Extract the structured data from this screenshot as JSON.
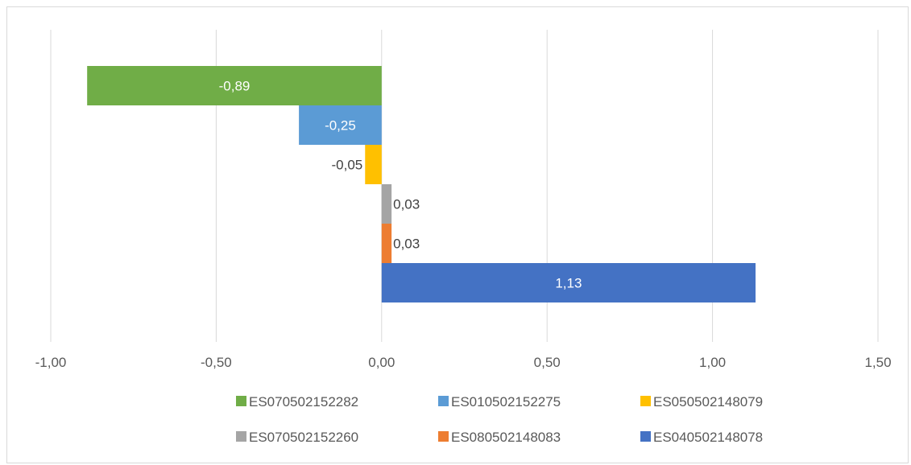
{
  "chart_data": {
    "type": "bar",
    "orientation": "horizontal",
    "title": "",
    "xlabel": "",
    "ylabel": "",
    "xlim": [
      -1.0,
      1.5
    ],
    "x_ticks": [
      -1.0,
      -0.5,
      0.0,
      0.5,
      1.0,
      1.5
    ],
    "x_tick_labels": [
      "-1,00",
      "-0,50",
      "0,00",
      "0,50",
      "1,00",
      "1,50"
    ],
    "grid": "vertical",
    "legend_position": "bottom",
    "series": [
      {
        "name": "ES070502152282",
        "value": -0.89,
        "label": "-0,89",
        "color": "#70ad47",
        "label_color": "#ffffff",
        "label_inside": true
      },
      {
        "name": "ES010502152275",
        "value": -0.25,
        "label": "-0,25",
        "color": "#5b9bd5",
        "label_color": "#ffffff",
        "label_inside": true
      },
      {
        "name": "ES050502148079",
        "value": -0.05,
        "label": "-0,05",
        "color": "#ffc000",
        "label_color": "#404040",
        "label_inside": false
      },
      {
        "name": "ES070502152260",
        "value": 0.03,
        "label": "0,03",
        "color": "#a5a5a5",
        "label_color": "#404040",
        "label_inside": false
      },
      {
        "name": "ES080502148083",
        "value": 0.03,
        "label": "0,03",
        "color": "#ed7d31",
        "label_color": "#404040",
        "label_inside": false
      },
      {
        "name": "ES040502148078",
        "value": 1.13,
        "label": "1,13",
        "color": "#4472c4",
        "label_color": "#ffffff",
        "label_inside": true
      }
    ],
    "legend_rows": [
      [
        "ES070502152282",
        "ES010502152275",
        "ES050502148079"
      ],
      [
        "ES070502152260",
        "ES080502148083",
        "ES040502148078"
      ]
    ],
    "gridline_color": "#d9d9d9"
  }
}
